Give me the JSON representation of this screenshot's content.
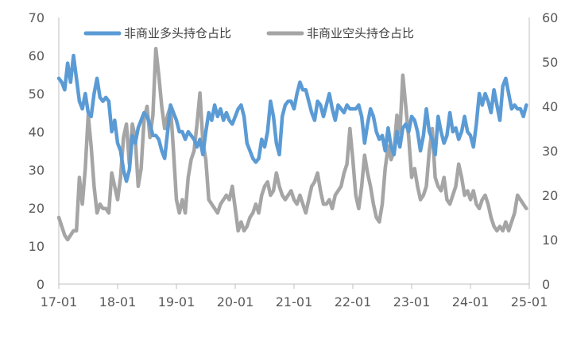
{
  "chart_data": {
    "type": "line",
    "title": "",
    "xlabel": "",
    "ylabel": "",
    "y2label": "",
    "grid": false,
    "legend_position": "top",
    "x_ticks": [
      "17-01",
      "18-01",
      "19-01",
      "20-01",
      "21-01",
      "22-01",
      "23-01",
      "24-01",
      "25-01"
    ],
    "x_range": [
      0,
      8
    ],
    "y_left_range": [
      0,
      70
    ],
    "y_left_ticks": [
      "0",
      "10",
      "20",
      "30",
      "40",
      "50",
      "60",
      "70"
    ],
    "y_right_range": [
      0,
      60
    ],
    "y_right_ticks": [
      "0",
      "10",
      "20",
      "30",
      "40",
      "50",
      "60"
    ],
    "series": [
      {
        "name": "非商业多头持仓占比",
        "axis": "left",
        "color": "#5B9BD5",
        "points": [
          [
            0.0,
            54
          ],
          [
            0.05,
            53
          ],
          [
            0.1,
            51
          ],
          [
            0.15,
            58
          ],
          [
            0.2,
            53
          ],
          [
            0.25,
            60
          ],
          [
            0.3,
            54
          ],
          [
            0.35,
            48
          ],
          [
            0.4,
            46
          ],
          [
            0.45,
            50
          ],
          [
            0.5,
            45
          ],
          [
            0.55,
            44
          ],
          [
            0.6,
            50
          ],
          [
            0.65,
            54
          ],
          [
            0.7,
            49
          ],
          [
            0.75,
            48
          ],
          [
            0.8,
            49
          ],
          [
            0.85,
            48
          ],
          [
            0.9,
            40
          ],
          [
            0.95,
            43
          ],
          [
            1.0,
            37
          ],
          [
            1.05,
            35
          ],
          [
            1.1,
            30
          ],
          [
            1.15,
            27
          ],
          [
            1.2,
            30
          ],
          [
            1.25,
            39
          ],
          [
            1.3,
            37
          ],
          [
            1.35,
            41
          ],
          [
            1.4,
            43
          ],
          [
            1.45,
            45
          ],
          [
            1.5,
            44
          ],
          [
            1.55,
            42
          ],
          [
            1.6,
            39
          ],
          [
            1.65,
            39
          ],
          [
            1.7,
            38
          ],
          [
            1.75,
            35
          ],
          [
            1.8,
            33
          ],
          [
            1.85,
            40
          ],
          [
            1.9,
            47
          ],
          [
            1.95,
            45
          ],
          [
            2.0,
            43
          ],
          [
            2.05,
            40
          ],
          [
            2.1,
            40
          ],
          [
            2.15,
            38
          ],
          [
            2.2,
            40
          ],
          [
            2.25,
            39
          ],
          [
            2.3,
            38
          ],
          [
            2.35,
            36
          ],
          [
            2.4,
            38
          ],
          [
            2.45,
            34
          ],
          [
            2.5,
            40
          ],
          [
            2.55,
            45
          ],
          [
            2.6,
            43
          ],
          [
            2.65,
            47
          ],
          [
            2.7,
            44
          ],
          [
            2.75,
            46
          ],
          [
            2.8,
            43
          ],
          [
            2.85,
            45
          ],
          [
            2.9,
            43
          ],
          [
            2.95,
            42
          ],
          [
            3.0,
            44
          ],
          [
            3.05,
            46
          ],
          [
            3.1,
            47
          ],
          [
            3.15,
            44
          ],
          [
            3.2,
            37
          ],
          [
            3.25,
            35
          ],
          [
            3.3,
            33
          ],
          [
            3.35,
            32
          ],
          [
            3.4,
            33
          ],
          [
            3.45,
            38
          ],
          [
            3.5,
            36
          ],
          [
            3.55,
            40
          ],
          [
            3.6,
            48
          ],
          [
            3.65,
            44
          ],
          [
            3.7,
            37
          ],
          [
            3.75,
            34
          ],
          [
            3.8,
            44
          ],
          [
            3.85,
            47
          ],
          [
            3.9,
            48
          ],
          [
            3.95,
            48
          ],
          [
            4.0,
            46
          ],
          [
            4.05,
            50
          ],
          [
            4.1,
            53
          ],
          [
            4.15,
            51
          ],
          [
            4.2,
            51
          ],
          [
            4.25,
            48
          ],
          [
            4.3,
            45
          ],
          [
            4.35,
            43
          ],
          [
            4.4,
            48
          ],
          [
            4.45,
            47
          ],
          [
            4.5,
            44
          ],
          [
            4.55,
            47
          ],
          [
            4.6,
            50
          ],
          [
            4.65,
            46
          ],
          [
            4.7,
            43
          ],
          [
            4.75,
            47
          ],
          [
            4.8,
            46
          ],
          [
            4.85,
            45
          ],
          [
            4.9,
            47
          ],
          [
            4.95,
            46
          ],
          [
            5.0,
            46
          ],
          [
            5.05,
            46
          ],
          [
            5.1,
            47
          ],
          [
            5.15,
            44
          ],
          [
            5.2,
            37
          ],
          [
            5.25,
            42
          ],
          [
            5.3,
            46
          ],
          [
            5.35,
            44
          ],
          [
            5.4,
            40
          ],
          [
            5.45,
            38
          ],
          [
            5.5,
            39
          ],
          [
            5.55,
            35
          ],
          [
            5.6,
            41
          ],
          [
            5.65,
            36
          ],
          [
            5.7,
            34
          ],
          [
            5.75,
            40
          ],
          [
            5.8,
            36
          ],
          [
            5.85,
            41
          ],
          [
            5.9,
            42
          ],
          [
            5.95,
            40
          ],
          [
            6.0,
            44
          ],
          [
            6.05,
            43
          ],
          [
            6.1,
            40
          ],
          [
            6.15,
            35
          ],
          [
            6.2,
            39
          ],
          [
            6.25,
            46
          ],
          [
            6.3,
            40
          ],
          [
            6.35,
            38
          ],
          [
            6.4,
            34
          ],
          [
            6.45,
            44
          ],
          [
            6.5,
            40
          ],
          [
            6.55,
            37
          ],
          [
            6.6,
            39
          ],
          [
            6.65,
            45
          ],
          [
            6.7,
            40
          ],
          [
            6.75,
            41
          ],
          [
            6.8,
            38
          ],
          [
            6.85,
            40
          ],
          [
            6.9,
            44
          ],
          [
            6.95,
            40
          ],
          [
            7.0,
            39
          ],
          [
            7.05,
            36
          ],
          [
            7.1,
            42
          ],
          [
            7.15,
            50
          ],
          [
            7.2,
            47
          ],
          [
            7.25,
            50
          ],
          [
            7.3,
            48
          ],
          [
            7.35,
            45
          ],
          [
            7.4,
            51
          ],
          [
            7.45,
            47
          ],
          [
            7.5,
            43
          ],
          [
            7.55,
            52
          ],
          [
            7.6,
            54
          ],
          [
            7.65,
            50
          ],
          [
            7.7,
            46
          ],
          [
            7.75,
            47
          ],
          [
            7.8,
            46
          ],
          [
            7.85,
            46
          ],
          [
            7.9,
            44
          ],
          [
            7.95,
            47
          ]
        ]
      },
      {
        "name": "非商业空头持仓占比",
        "axis": "right",
        "color": "#A5A5A5",
        "points": [
          [
            0.0,
            15
          ],
          [
            0.05,
            13
          ],
          [
            0.1,
            11
          ],
          [
            0.15,
            10
          ],
          [
            0.2,
            11
          ],
          [
            0.25,
            12
          ],
          [
            0.3,
            12
          ],
          [
            0.35,
            24
          ],
          [
            0.4,
            18
          ],
          [
            0.45,
            26
          ],
          [
            0.5,
            38
          ],
          [
            0.55,
            31
          ],
          [
            0.6,
            22
          ],
          [
            0.65,
            16
          ],
          [
            0.7,
            18
          ],
          [
            0.75,
            17
          ],
          [
            0.8,
            17
          ],
          [
            0.85,
            16
          ],
          [
            0.9,
            25
          ],
          [
            0.95,
            22
          ],
          [
            1.0,
            19
          ],
          [
            1.05,
            24
          ],
          [
            1.1,
            33
          ],
          [
            1.15,
            36
          ],
          [
            1.2,
            27
          ],
          [
            1.25,
            36
          ],
          [
            1.3,
            33
          ],
          [
            1.35,
            22
          ],
          [
            1.4,
            26
          ],
          [
            1.45,
            37
          ],
          [
            1.5,
            40
          ],
          [
            1.55,
            33
          ],
          [
            1.6,
            38
          ],
          [
            1.65,
            53
          ],
          [
            1.7,
            47
          ],
          [
            1.75,
            40
          ],
          [
            1.8,
            35
          ],
          [
            1.85,
            38
          ],
          [
            1.9,
            40
          ],
          [
            1.95,
            30
          ],
          [
            2.0,
            19
          ],
          [
            2.05,
            16
          ],
          [
            2.1,
            19
          ],
          [
            2.15,
            16
          ],
          [
            2.2,
            24
          ],
          [
            2.25,
            28
          ],
          [
            2.3,
            30
          ],
          [
            2.35,
            36
          ],
          [
            2.4,
            43
          ],
          [
            2.45,
            32
          ],
          [
            2.5,
            28
          ],
          [
            2.55,
            19
          ],
          [
            2.6,
            18
          ],
          [
            2.65,
            17
          ],
          [
            2.7,
            16
          ],
          [
            2.75,
            18
          ],
          [
            2.8,
            19
          ],
          [
            2.85,
            20
          ],
          [
            2.9,
            19
          ],
          [
            2.95,
            22
          ],
          [
            3.0,
            17
          ],
          [
            3.05,
            12
          ],
          [
            3.1,
            14
          ],
          [
            3.15,
            12
          ],
          [
            3.2,
            13
          ],
          [
            3.25,
            15
          ],
          [
            3.3,
            16
          ],
          [
            3.35,
            18
          ],
          [
            3.4,
            16
          ],
          [
            3.45,
            20
          ],
          [
            3.5,
            22
          ],
          [
            3.55,
            23
          ],
          [
            3.6,
            20
          ],
          [
            3.65,
            21
          ],
          [
            3.7,
            25
          ],
          [
            3.75,
            22
          ],
          [
            3.8,
            20
          ],
          [
            3.85,
            19
          ],
          [
            3.9,
            20
          ],
          [
            3.95,
            21
          ],
          [
            4.0,
            19
          ],
          [
            4.05,
            18
          ],
          [
            4.1,
            20
          ],
          [
            4.15,
            18
          ],
          [
            4.2,
            16
          ],
          [
            4.25,
            19
          ],
          [
            4.3,
            22
          ],
          [
            4.35,
            23
          ],
          [
            4.4,
            25
          ],
          [
            4.45,
            21
          ],
          [
            4.5,
            18
          ],
          [
            4.55,
            18
          ],
          [
            4.6,
            19
          ],
          [
            4.65,
            17
          ],
          [
            4.7,
            20
          ],
          [
            4.75,
            21
          ],
          [
            4.8,
            22
          ],
          [
            4.85,
            25
          ],
          [
            4.9,
            27
          ],
          [
            4.95,
            35
          ],
          [
            5.0,
            28
          ],
          [
            5.05,
            20
          ],
          [
            5.1,
            17
          ],
          [
            5.15,
            22
          ],
          [
            5.2,
            29
          ],
          [
            5.25,
            25
          ],
          [
            5.3,
            22
          ],
          [
            5.35,
            18
          ],
          [
            5.4,
            15
          ],
          [
            5.45,
            14
          ],
          [
            5.5,
            18
          ],
          [
            5.55,
            26
          ],
          [
            5.6,
            31
          ],
          [
            5.65,
            28
          ],
          [
            5.7,
            30
          ],
          [
            5.75,
            38
          ],
          [
            5.8,
            34
          ],
          [
            5.85,
            47
          ],
          [
            5.9,
            40
          ],
          [
            5.95,
            33
          ],
          [
            6.0,
            24
          ],
          [
            6.05,
            26
          ],
          [
            6.1,
            22
          ],
          [
            6.15,
            19
          ],
          [
            6.2,
            20
          ],
          [
            6.25,
            22
          ],
          [
            6.3,
            30
          ],
          [
            6.35,
            35
          ],
          [
            6.4,
            24
          ],
          [
            6.45,
            22
          ],
          [
            6.5,
            21
          ],
          [
            6.55,
            24
          ],
          [
            6.6,
            19
          ],
          [
            6.65,
            18
          ],
          [
            6.7,
            20
          ],
          [
            6.75,
            22
          ],
          [
            6.8,
            27
          ],
          [
            6.85,
            24
          ],
          [
            6.9,
            20
          ],
          [
            6.95,
            21
          ],
          [
            7.0,
            19
          ],
          [
            7.05,
            21
          ],
          [
            7.1,
            18
          ],
          [
            7.15,
            17
          ],
          [
            7.2,
            19
          ],
          [
            7.25,
            20
          ],
          [
            7.3,
            18
          ],
          [
            7.35,
            15
          ],
          [
            7.4,
            13
          ],
          [
            7.45,
            12
          ],
          [
            7.5,
            13
          ],
          [
            7.55,
            12
          ],
          [
            7.6,
            14
          ],
          [
            7.65,
            12
          ],
          [
            7.7,
            14
          ],
          [
            7.75,
            16
          ],
          [
            7.8,
            20
          ],
          [
            7.85,
            19
          ],
          [
            7.9,
            18
          ],
          [
            7.95,
            17
          ]
        ]
      }
    ]
  }
}
